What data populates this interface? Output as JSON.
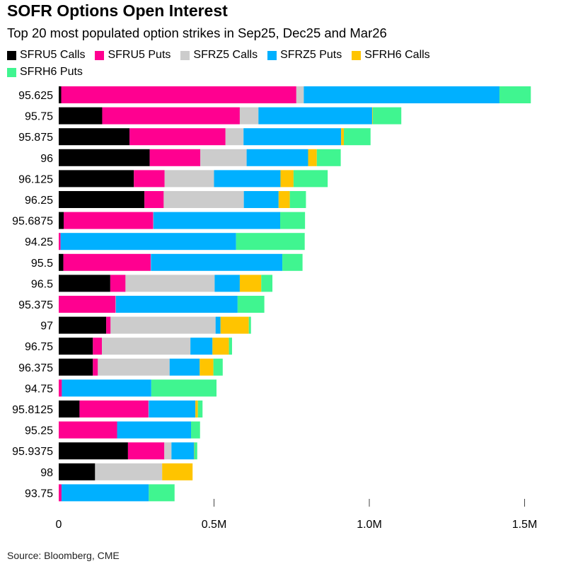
{
  "chart_data": {
    "type": "bar",
    "orientation": "horizontal",
    "stacked": true,
    "title": "SOFR Options Open Interest",
    "subtitle": "Top 20 most populated option strikes in Sep25, Dec25 and Mar26",
    "xlabel": "",
    "ylabel": "",
    "xlim": [
      0,
      1500000
    ],
    "xticks": [
      0,
      500000,
      1000000,
      1500000
    ],
    "xtick_labels": [
      "0",
      "0.5M",
      "1.0M",
      "1.5M"
    ],
    "legend_position": "top",
    "categories": [
      "95.625",
      "95.75",
      "95.875",
      "96",
      "96.125",
      "96.25",
      "95.6875",
      "94.25",
      "95.5",
      "96.5",
      "95.375",
      "97",
      "96.75",
      "96.375",
      "94.75",
      "95.8125",
      "95.25",
      "95.9375",
      "98",
      "93.75"
    ],
    "series": [
      {
        "name": "SFRU5 Calls",
        "color": "#000000",
        "values": [
          8000,
          140000,
          228000,
          293000,
          242000,
          276000,
          16000,
          0,
          15000,
          166000,
          0,
          153000,
          110000,
          110000,
          0,
          67000,
          0,
          223000,
          117000,
          0
        ]
      },
      {
        "name": "SFRU5 Puts",
        "color": "#ff0090",
        "values": [
          757000,
          443000,
          309000,
          163000,
          99000,
          62000,
          288000,
          6000,
          281000,
          49000,
          183000,
          14000,
          29000,
          16000,
          10000,
          222000,
          188000,
          117000,
          0,
          9000
        ]
      },
      {
        "name": "SFRZ5 Calls",
        "color": "#cccccc",
        "values": [
          24000,
          60000,
          58000,
          149000,
          159000,
          258000,
          1000,
          0,
          1000,
          287000,
          1000,
          338000,
          285000,
          231000,
          0,
          1000,
          0,
          23000,
          216000,
          0
        ]
      },
      {
        "name": "SFRZ5 Puts",
        "color": "#00b0ff",
        "values": [
          630000,
          366000,
          314000,
          198000,
          214000,
          112000,
          408000,
          565000,
          423000,
          81000,
          392000,
          16000,
          71000,
          97000,
          288000,
          150000,
          238000,
          73000,
          0,
          281000
        ]
      },
      {
        "name": "SFRH6 Calls",
        "color": "#ffc400",
        "values": [
          0,
          2000,
          9000,
          28000,
          42000,
          36000,
          0,
          0,
          0,
          69000,
          0,
          91000,
          53000,
          44000,
          0,
          8000,
          0,
          1000,
          98000,
          0
        ]
      },
      {
        "name": "SFRH6 Puts",
        "color": "#40f590",
        "values": [
          101000,
          92000,
          86000,
          77000,
          110000,
          52000,
          80000,
          221000,
          65000,
          36000,
          86000,
          7000,
          10000,
          30000,
          210000,
          15000,
          29000,
          9000,
          0,
          83000
        ]
      }
    ],
    "source": "Source: Bloomberg, CME"
  }
}
